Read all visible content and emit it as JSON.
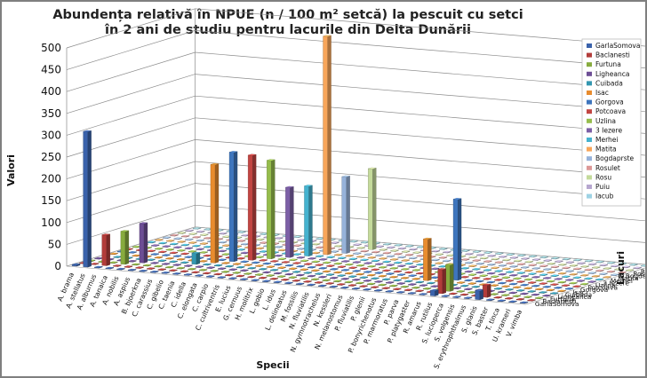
{
  "chart_data": {
    "type": "bar",
    "subtype": "3d-column",
    "title": "Abundența relativă în NPUE (n / 100 m² setcă) la pescuit cu setci în 2 ani de studiu pentru lacurile din Delta Dunării",
    "title_lines": [
      "Abundența relativă în NPUE (n / 100 m² setcă) la pescuit cu setci",
      "în 2 ani de studiu pentru lacurile din Delta Dunării"
    ],
    "xlabel": "Specii",
    "ylabel": "Valori",
    "zlabel": "Lacuri",
    "ylim": [
      0,
      500
    ],
    "yticks": [
      0,
      50,
      100,
      150,
      200,
      250,
      300,
      350,
      400,
      450,
      500
    ],
    "grid": true,
    "legend_position": "right",
    "categories": [
      "A. brama",
      "A. stellatus",
      "A. alburnus",
      "A. tanaica",
      "A. nobilis",
      "A. aspius",
      "B. bjoerkna",
      "C. carassius",
      "C. gibelio",
      "C. taenia",
      "C. idella",
      "C. elongata",
      "C. carpio",
      "C. cultriventris",
      "E. lucius",
      "G. cernuus",
      "H. molitrix",
      "L. gobio",
      "L. idus",
      "L. delineatus",
      "M. fossilis",
      "N. fluviatilis",
      "N. gymnotrachelus",
      "N. kessleri",
      "N. melanostomus",
      "P. fluviatilis",
      "P. glenii",
      "P. bonyrichenotus",
      "P. marmoratus",
      "P. parva",
      "P. platygaster",
      "R. amarus",
      "R. rutilus",
      "S. lucioperca",
      "S. volgensis",
      "S. erythrophthalmus",
      "S. glanis",
      "S. baster",
      "T. tinca",
      "U. krameri",
      "V. vimba"
    ],
    "legend": [
      "GarlaSomova",
      "Baclanesti",
      "Furtuna",
      "Ligheanca",
      "Cuibada",
      "Isac",
      "Gorgova",
      "Potcoava",
      "Uzlina",
      "3 Iezere",
      "Merhei",
      "Matita",
      "Bogdaprste",
      "Rosulet",
      "Rosu",
      "Puiu",
      "Iacub"
    ],
    "z_axis_labels": [
      "Iacub",
      "Puiu",
      "Rosu",
      "Rosulet",
      "Bogdaprste",
      "Matita",
      "Merhei",
      "3 Iezere",
      "Uzlina",
      "Potcoava",
      "Gorgova",
      "Isac",
      "Cuibada",
      "Ligheanca",
      "Furtuna",
      "Baclanesti",
      "GarlaSomova"
    ],
    "colors": [
      "#3a62ab",
      "#b23c3a",
      "#87ab3e",
      "#6d4e95",
      "#3397b0",
      "#e88c2e",
      "#3e75bd",
      "#c24542",
      "#96bd4d",
      "#7c5fa6",
      "#45b2cf",
      "#f8a65a",
      "#96b2da",
      "#dc9897",
      "#c4da9b",
      "#b7a7cf",
      "#9dd2e4"
    ],
    "series": [
      {
        "name": "GarlaSomova",
        "values": [
          3,
          310,
          0,
          0,
          0,
          0,
          0,
          0,
          0,
          0,
          0,
          0,
          0,
          0,
          0,
          0,
          0,
          0,
          0,
          0,
          0,
          0,
          0,
          0,
          0,
          0,
          0,
          0,
          0,
          0,
          0,
          0,
          12,
          0,
          0,
          0,
          20,
          0,
          0,
          0,
          0
        ]
      },
      {
        "name": "Baclanesti",
        "values": [
          0,
          0,
          70,
          0,
          0,
          0,
          0,
          0,
          0,
          0,
          0,
          0,
          0,
          0,
          0,
          0,
          0,
          0,
          0,
          0,
          0,
          0,
          0,
          0,
          0,
          0,
          0,
          0,
          0,
          0,
          0,
          0,
          55,
          0,
          0,
          0,
          28,
          0,
          0,
          0,
          0
        ]
      },
      {
        "name": "Furtuna",
        "values": [
          0,
          0,
          0,
          75,
          0,
          0,
          0,
          0,
          0,
          0,
          0,
          0,
          0,
          0,
          0,
          0,
          0,
          0,
          0,
          0,
          0,
          0,
          0,
          0,
          0,
          0,
          0,
          0,
          0,
          0,
          0,
          0,
          60,
          0,
          0,
          0,
          0,
          0,
          0,
          0,
          0
        ]
      },
      {
        "name": "Ligheanca",
        "values": [
          0,
          0,
          0,
          0,
          90,
          0,
          0,
          0,
          0,
          0,
          0,
          0,
          0,
          0,
          0,
          0,
          0,
          0,
          0,
          0,
          0,
          0,
          0,
          0,
          0,
          0,
          0,
          0,
          0,
          0,
          0,
          0,
          0,
          0,
          0,
          0,
          0,
          0,
          0,
          0,
          0
        ]
      },
      {
        "name": "Cuibada",
        "values": [
          0,
          0,
          0,
          0,
          0,
          0,
          0,
          0,
          25,
          0,
          0,
          0,
          0,
          0,
          0,
          0,
          0,
          0,
          0,
          0,
          0,
          0,
          0,
          0,
          0,
          0,
          0,
          0,
          0,
          0,
          0,
          0,
          0,
          0,
          0,
          0,
          0,
          0,
          0,
          0,
          0
        ]
      },
      {
        "name": "Isac",
        "values": [
          0,
          0,
          0,
          0,
          0,
          0,
          0,
          0,
          0,
          225,
          0,
          0,
          0,
          0,
          0,
          0,
          0,
          0,
          0,
          0,
          0,
          0,
          0,
          0,
          0,
          0,
          0,
          0,
          95,
          0,
          0,
          0,
          0,
          0,
          0,
          0,
          0,
          0,
          0,
          0,
          0
        ]
      },
      {
        "name": "Gorgova",
        "values": [
          0,
          0,
          0,
          0,
          0,
          0,
          0,
          0,
          0,
          0,
          250,
          0,
          0,
          0,
          0,
          0,
          0,
          0,
          0,
          0,
          0,
          0,
          0,
          0,
          0,
          0,
          0,
          0,
          0,
          0,
          185,
          0,
          0,
          0,
          0,
          0,
          0,
          0,
          0,
          0,
          0
        ]
      },
      {
        "name": "Potcoava",
        "values": [
          0,
          0,
          0,
          0,
          0,
          0,
          0,
          0,
          0,
          0,
          0,
          240,
          0,
          0,
          0,
          0,
          0,
          0,
          0,
          0,
          0,
          0,
          0,
          0,
          0,
          0,
          0,
          0,
          0,
          0,
          0,
          0,
          0,
          0,
          0,
          0,
          0,
          0,
          0,
          0,
          0
        ]
      },
      {
        "name": "Uzlina",
        "values": [
          0,
          0,
          0,
          0,
          0,
          0,
          0,
          0,
          0,
          0,
          0,
          0,
          225,
          0,
          0,
          0,
          0,
          0,
          0,
          0,
          0,
          0,
          0,
          0,
          0,
          0,
          0,
          0,
          0,
          0,
          0,
          0,
          0,
          0,
          0,
          0,
          0,
          0,
          0,
          0,
          0
        ]
      },
      {
        "name": "3 Iezere",
        "values": [
          0,
          0,
          0,
          0,
          0,
          0,
          0,
          0,
          0,
          0,
          0,
          0,
          0,
          160,
          0,
          0,
          0,
          0,
          0,
          0,
          0,
          0,
          0,
          0,
          0,
          0,
          0,
          0,
          0,
          0,
          0,
          0,
          0,
          0,
          0,
          0,
          0,
          0,
          0,
          0,
          0
        ]
      },
      {
        "name": "Merhei",
        "values": [
          0,
          0,
          0,
          0,
          0,
          0,
          0,
          0,
          0,
          0,
          0,
          0,
          0,
          0,
          160,
          0,
          0,
          0,
          0,
          0,
          0,
          0,
          0,
          0,
          0,
          0,
          0,
          0,
          0,
          0,
          0,
          0,
          0,
          0,
          0,
          0,
          0,
          0,
          0,
          0,
          0
        ]
      },
      {
        "name": "Matita",
        "values": [
          0,
          0,
          0,
          0,
          0,
          0,
          0,
          0,
          0,
          0,
          0,
          0,
          0,
          0,
          0,
          500,
          0,
          0,
          0,
          0,
          0,
          0,
          0,
          0,
          0,
          0,
          0,
          0,
          0,
          0,
          0,
          0,
          0,
          0,
          0,
          0,
          0,
          0,
          0,
          0,
          0
        ]
      },
      {
        "name": "Bogdaprste",
        "values": [
          0,
          0,
          0,
          0,
          0,
          0,
          0,
          0,
          0,
          0,
          0,
          0,
          0,
          0,
          0,
          0,
          175,
          0,
          0,
          0,
          0,
          0,
          0,
          0,
          0,
          0,
          0,
          0,
          0,
          0,
          0,
          0,
          0,
          0,
          0,
          0,
          0,
          0,
          0,
          0,
          0
        ]
      },
      {
        "name": "Rosulet",
        "values": [
          0,
          0,
          0,
          0,
          0,
          0,
          0,
          0,
          0,
          0,
          0,
          0,
          0,
          0,
          0,
          0,
          0,
          0,
          0,
          0,
          0,
          0,
          0,
          0,
          0,
          0,
          0,
          0,
          0,
          0,
          0,
          0,
          0,
          0,
          0,
          0,
          0,
          0,
          0,
          0,
          0
        ]
      },
      {
        "name": "Rosu",
        "values": [
          0,
          0,
          0,
          0,
          0,
          0,
          0,
          0,
          0,
          0,
          0,
          0,
          0,
          0,
          0,
          0,
          0,
          185,
          0,
          0,
          0,
          0,
          0,
          0,
          0,
          0,
          0,
          0,
          0,
          0,
          0,
          0,
          0,
          0,
          0,
          0,
          0,
          0,
          0,
          0,
          0
        ]
      },
      {
        "name": "Puiu",
        "values": [
          0,
          0,
          0,
          0,
          0,
          0,
          0,
          0,
          0,
          0,
          0,
          0,
          0,
          0,
          0,
          0,
          0,
          0,
          0,
          0,
          0,
          0,
          0,
          0,
          0,
          0,
          0,
          0,
          0,
          0,
          0,
          0,
          0,
          0,
          0,
          0,
          0,
          0,
          0,
          0,
          0
        ]
      },
      {
        "name": "Iacub",
        "values": [
          0,
          0,
          0,
          0,
          0,
          0,
          0,
          0,
          0,
          0,
          0,
          0,
          0,
          0,
          0,
          0,
          0,
          0,
          0,
          0,
          0,
          0,
          0,
          0,
          0,
          0,
          0,
          0,
          0,
          0,
          0,
          0,
          0,
          0,
          0,
          0,
          0,
          0,
          0,
          0,
          0
        ]
      }
    ]
  }
}
